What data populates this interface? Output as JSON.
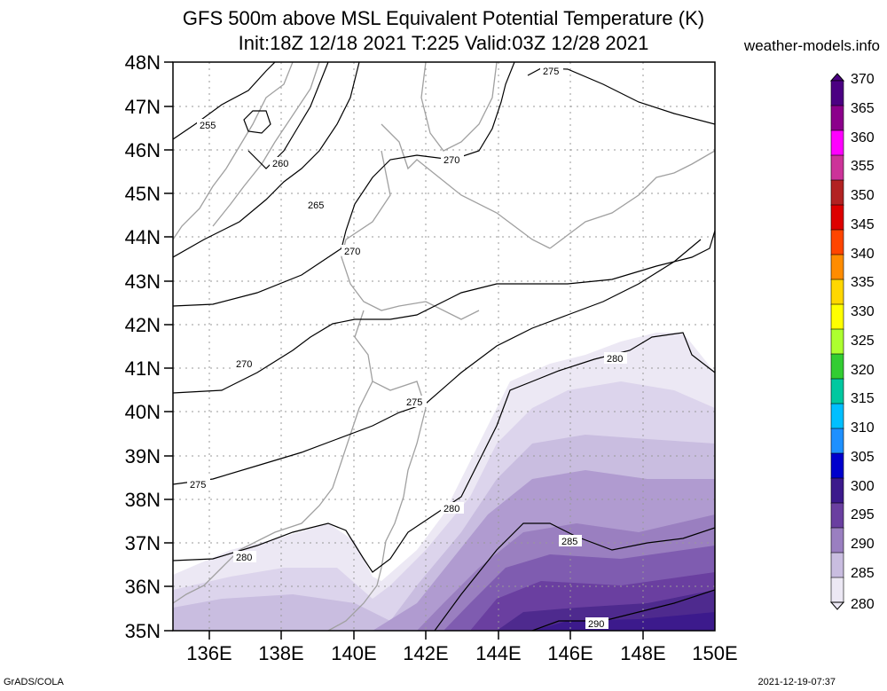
{
  "title": {
    "line1": "GFS 500m above MSL Equivalent Potential Temperature (K)",
    "line2": "Init:18Z 12/18 2021 T:225 Valid:03Z 12/28 2021"
  },
  "brand": "weather-models.info",
  "footer": {
    "software": "GrADS/COLA",
    "timestamp": "2021-12-19-07:37"
  },
  "map": {
    "lat_labels": [
      "48N",
      "47N",
      "46N",
      "45N",
      "44N",
      "43N",
      "42N",
      "41N",
      "40N",
      "39N",
      "38N",
      "37N",
      "36N",
      "35N"
    ],
    "lon_labels": [
      "136E",
      "138E",
      "140E",
      "142E",
      "144E",
      "146E",
      "148E",
      "150E"
    ],
    "contour_labels": [
      "255",
      "260",
      "265",
      "270",
      "270",
      "270",
      "275",
      "275",
      "275",
      "280",
      "280",
      "280",
      "285",
      "290"
    ]
  },
  "colorbar": {
    "labels": [
      "370",
      "365",
      "360",
      "355",
      "350",
      "345",
      "340",
      "335",
      "330",
      "325",
      "320",
      "315",
      "310",
      "305",
      "300",
      "295",
      "290",
      "285",
      "280"
    ],
    "colors": [
      "#4b0082",
      "#8b008b",
      "#ff00ff",
      "#cc3399",
      "#b22222",
      "#dd0000",
      "#ff4500",
      "#ff8c00",
      "#ffd700",
      "#ffff00",
      "#adff2f",
      "#32cd32",
      "#00c8a0",
      "#00bfff",
      "#1e90ff",
      "#0000cd",
      "#3c1a8c",
      "#6a3fa0",
      "#9a7fc0",
      "#c9bde0",
      "#ece8f4"
    ]
  }
}
